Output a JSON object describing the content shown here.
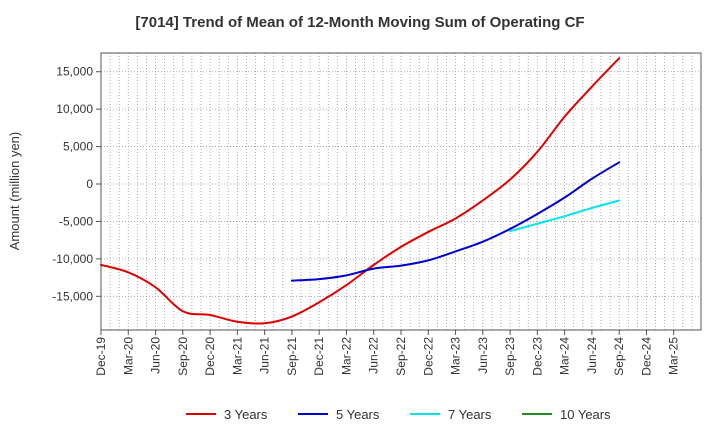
{
  "chart_data": {
    "type": "line",
    "title": "[7014]  Trend of Mean of 12-Month Moving Sum of Operating CF",
    "xlabel": "",
    "ylabel": "Amount (million yen)",
    "ylim": [
      -19500,
      17500
    ],
    "yticks": [
      15000,
      10000,
      5000,
      0,
      -5000,
      -10000,
      -15000
    ],
    "ytick_labels": [
      "15,000",
      "10,000",
      "5,000",
      "0",
      "-5,000",
      "-10,000",
      "-15,000"
    ],
    "x_start": "Dec-19",
    "x_months_total": 66,
    "x_tick_labels": [
      "Dec-19",
      "Mar-20",
      "Jun-20",
      "Sep-20",
      "Dec-20",
      "Mar-21",
      "Jun-21",
      "Sep-21",
      "Dec-21",
      "Mar-22",
      "Jun-22",
      "Sep-22",
      "Dec-22",
      "Mar-23",
      "Jun-23",
      "Sep-23",
      "Dec-23",
      "Mar-24",
      "Jun-24",
      "Sep-24",
      "Dec-24",
      "Mar-25"
    ],
    "grid": true,
    "legend_position": "bottom",
    "series": [
      {
        "name": "3 Years",
        "color": "#dd0000",
        "x_months": [
          0,
          3,
          6,
          9,
          12,
          15,
          18,
          21,
          24,
          27,
          30,
          33,
          36,
          39,
          42,
          45,
          48,
          51,
          54,
          57
        ],
        "values": [
          -10800,
          -11800,
          -13800,
          -17000,
          -17500,
          -18400,
          -18600,
          -17700,
          -15800,
          -13500,
          -10800,
          -8400,
          -6400,
          -4600,
          -2200,
          600,
          4300,
          9000,
          13000,
          16800
        ]
      },
      {
        "name": "5 Years",
        "color": "#0000cc",
        "x_months": [
          21,
          24,
          27,
          30,
          33,
          36,
          39,
          42,
          45,
          48,
          51,
          54,
          57
        ],
        "values": [
          -12900,
          -12700,
          -12200,
          -11300,
          -10900,
          -10200,
          -9000,
          -7700,
          -6000,
          -4000,
          -1800,
          700,
          2900
        ]
      },
      {
        "name": "7 Years",
        "color": "#00e5ee",
        "x_months": [
          45,
          48,
          51,
          54,
          57
        ],
        "values": [
          -6300,
          -5300,
          -4300,
          -3200,
          -2200
        ]
      },
      {
        "name": "10 Years",
        "color": "#228b22",
        "x_months": [],
        "values": []
      }
    ]
  }
}
